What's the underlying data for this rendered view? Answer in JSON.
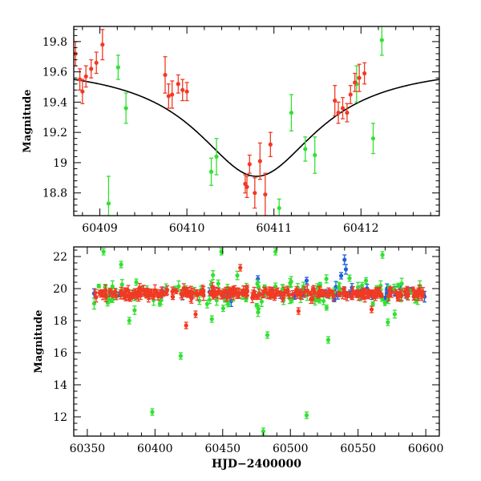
{
  "colors": {
    "green": "#33e033",
    "red": "#f03a24",
    "blue": "#1f5fe0",
    "model": "#000000"
  },
  "chart_data": [
    {
      "type": "scatter",
      "ylabel": "Magnitude",
      "xlabel": "",
      "xlim": [
        60408.7,
        60412.9
      ],
      "ylim": [
        19.9,
        18.65
      ],
      "y_inverted": true,
      "xticks": [
        60409,
        60410,
        60411,
        60412
      ],
      "xtick_labels": [
        "60409",
        "60410",
        "60411",
        "60412"
      ],
      "yticks": [
        18.8,
        19,
        19.2,
        19.4,
        19.6,
        19.8
      ],
      "ytick_labels": [
        "18.8",
        "19",
        "19.2",
        "19.4",
        "19.6",
        "19.8"
      ],
      "series": [
        {
          "color_key": "green",
          "points": [
            {
              "x": 60409.1,
              "y": 18.73,
              "err": 0.18
            },
            {
              "x": 60409.21,
              "y": 19.63,
              "err": 0.08
            },
            {
              "x": 60409.3,
              "y": 19.36,
              "err": 0.1
            },
            {
              "x": 60410.28,
              "y": 18.94,
              "err": 0.09
            },
            {
              "x": 60410.34,
              "y": 19.04,
              "err": 0.12
            },
            {
              "x": 60411.06,
              "y": 18.7,
              "err": 0.06
            },
            {
              "x": 60411.2,
              "y": 19.33,
              "err": 0.12
            },
            {
              "x": 60411.36,
              "y": 19.09,
              "err": 0.08
            },
            {
              "x": 60411.47,
              "y": 19.05,
              "err": 0.12
            },
            {
              "x": 60411.95,
              "y": 19.52,
              "err": 0.12
            },
            {
              "x": 60412.14,
              "y": 19.16,
              "err": 0.1
            },
            {
              "x": 60412.24,
              "y": 19.81,
              "err": 0.1
            }
          ]
        },
        {
          "color_key": "red",
          "points": [
            {
              "x": 60408.72,
              "y": 19.72,
              "err": 0.08
            },
            {
              "x": 60408.77,
              "y": 19.55,
              "err": 0.07
            },
            {
              "x": 60408.8,
              "y": 19.47,
              "err": 0.08
            },
            {
              "x": 60408.84,
              "y": 19.57,
              "err": 0.07
            },
            {
              "x": 60408.9,
              "y": 19.62,
              "err": 0.06
            },
            {
              "x": 60408.96,
              "y": 19.66,
              "err": 0.07
            },
            {
              "x": 60409.03,
              "y": 19.78,
              "err": 0.1
            },
            {
              "x": 60409.75,
              "y": 19.58,
              "err": 0.12
            },
            {
              "x": 60409.79,
              "y": 19.44,
              "err": 0.08
            },
            {
              "x": 60409.83,
              "y": 19.45,
              "err": 0.09
            },
            {
              "x": 60409.9,
              "y": 19.52,
              "err": 0.06
            },
            {
              "x": 60409.95,
              "y": 19.48,
              "err": 0.07
            },
            {
              "x": 60410.0,
              "y": 19.47,
              "err": 0.06
            },
            {
              "x": 60410.67,
              "y": 18.86,
              "err": 0.06
            },
            {
              "x": 60410.69,
              "y": 18.84,
              "err": 0.07
            },
            {
              "x": 60410.72,
              "y": 18.99,
              "err": 0.06
            },
            {
              "x": 60410.78,
              "y": 18.8,
              "err": 0.1
            },
            {
              "x": 60410.84,
              "y": 19.01,
              "err": 0.12
            },
            {
              "x": 60410.9,
              "y": 18.79,
              "err": 0.14
            },
            {
              "x": 60410.96,
              "y": 19.12,
              "err": 0.08
            },
            {
              "x": 60411.7,
              "y": 19.41,
              "err": 0.1
            },
            {
              "x": 60411.74,
              "y": 19.33,
              "err": 0.07
            },
            {
              "x": 60411.79,
              "y": 19.36,
              "err": 0.07
            },
            {
              "x": 60411.84,
              "y": 19.33,
              "err": 0.06
            },
            {
              "x": 60411.88,
              "y": 19.45,
              "err": 0.06
            },
            {
              "x": 60411.93,
              "y": 19.53,
              "err": 0.06
            },
            {
              "x": 60411.98,
              "y": 19.56,
              "err": 0.09
            },
            {
              "x": 60412.04,
              "y": 19.59,
              "err": 0.07
            }
          ]
        }
      ],
      "model_curve": {
        "color_key": "model",
        "baseline": 19.655,
        "amplitude": 0.745,
        "t0": 60410.8,
        "width": 0.85
      }
    },
    {
      "type": "scatter",
      "xlabel": "HJD−2400000",
      "ylabel": "Magnitude",
      "xlim": [
        60340,
        60610
      ],
      "ylim": [
        22.6,
        10.8
      ],
      "y_inverted": true,
      "xticks": [
        60350,
        60400,
        60450,
        60500,
        60550,
        60600
      ],
      "xtick_labels": [
        "60350",
        "60400",
        "60450",
        "60500",
        "60550",
        "60600"
      ],
      "yticks": [
        12,
        14,
        16,
        18,
        20,
        22
      ],
      "ytick_labels": [
        "12",
        "14",
        "16",
        "18",
        "20",
        "22"
      ],
      "band": {
        "x_start": 60355,
        "x_end": 60600,
        "median": 19.7
      },
      "series": [
        {
          "color_key": "blue",
          "density": 0.18,
          "scatter": 0.35,
          "points": [
            {
              "x": 60540.0,
              "y": 21.8,
              "err": 0.3
            },
            {
              "x": 60541.0,
              "y": 21.2,
              "err": 0.3
            },
            {
              "x": 60537.5,
              "y": 20.8,
              "err": 0.2
            },
            {
              "x": 60476.0,
              "y": 20.6,
              "err": 0.2
            },
            {
              "x": 60512.0,
              "y": 20.5,
              "err": 0.2
            }
          ]
        },
        {
          "color_key": "green",
          "density": 0.45,
          "scatter": 0.9,
          "points": [
            {
              "x": 60398.0,
              "y": 12.3,
              "err": 0.2
            },
            {
              "x": 60480.0,
              "y": 11.1,
              "err": 0.2
            },
            {
              "x": 60512.0,
              "y": 12.1,
              "err": 0.2
            },
            {
              "x": 60419.0,
              "y": 15.8,
              "err": 0.2
            },
            {
              "x": 60528.0,
              "y": 16.8,
              "err": 0.2
            },
            {
              "x": 60483.0,
              "y": 17.1,
              "err": 0.2
            },
            {
              "x": 60381.0,
              "y": 18.0,
              "err": 0.2
            },
            {
              "x": 60442.0,
              "y": 18.1,
              "err": 0.2
            },
            {
              "x": 60375.0,
              "y": 21.5,
              "err": 0.2
            },
            {
              "x": 60362.0,
              "y": 22.3,
              "err": 0.2
            },
            {
              "x": 60449.0,
              "y": 22.3,
              "err": 0.2
            },
            {
              "x": 60489.0,
              "y": 22.3,
              "err": 0.2
            },
            {
              "x": 60568.0,
              "y": 22.1,
              "err": 0.2
            },
            {
              "x": 60572.0,
              "y": 17.9,
              "err": 0.2
            }
          ]
        },
        {
          "color_key": "red",
          "density": 1.0,
          "scatter": 0.25,
          "points": [
            {
              "x": 60423.0,
              "y": 17.7,
              "err": 0.2
            },
            {
              "x": 60430.0,
              "y": 18.4,
              "err": 0.2
            },
            {
              "x": 60506.0,
              "y": 18.6,
              "err": 0.2
            },
            {
              "x": 60560.0,
              "y": 18.7,
              "err": 0.2
            },
            {
              "x": 60463.0,
              "y": 21.3,
              "err": 0.2
            }
          ]
        }
      ]
    }
  ]
}
